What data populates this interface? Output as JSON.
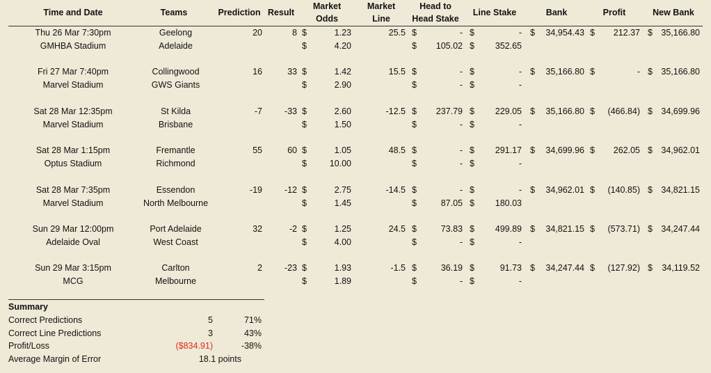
{
  "headers": {
    "time_date": "Time and Date",
    "teams": "Teams",
    "prediction": "Prediction",
    "result": "Result",
    "market_odds": [
      "Market",
      "Odds"
    ],
    "market_line": [
      "Market",
      "Line"
    ],
    "h2h_stake": [
      "Head to",
      "Head Stake"
    ],
    "line_stake": "Line Stake",
    "bank": "Bank",
    "profit": "Profit",
    "new_bank": "New Bank"
  },
  "currency": "$",
  "games": [
    {
      "time": "Thu 26 Mar 7:30pm",
      "venue": "GMHBA Stadium",
      "home": "Geelong",
      "away": "Adelaide",
      "prediction": "20",
      "result": "8",
      "odds_home": "1.23",
      "odds_away": "4.20",
      "line": "25.5",
      "h2h_home": "-",
      "h2h_away": "105.02",
      "ls_home": "-",
      "ls_away": "352.65",
      "bank": "34,954.43",
      "profit": "212.37",
      "new_bank": "35,166.80"
    },
    {
      "time": "Fri 27 Mar 7:40pm",
      "venue": "Marvel Stadium",
      "home": "Collingwood",
      "away": "GWS Giants",
      "prediction": "16",
      "result": "33",
      "odds_home": "1.42",
      "odds_away": "2.90",
      "line": "15.5",
      "h2h_home": "-",
      "h2h_away": "-",
      "ls_home": "-",
      "ls_away": "-",
      "bank": "35,166.80",
      "profit": "-",
      "new_bank": "35,166.80"
    },
    {
      "time": "Sat 28 Mar 12:35pm",
      "venue": "Marvel Stadium",
      "home": "St Kilda",
      "away": "Brisbane",
      "prediction": "-7",
      "result": "-33",
      "odds_home": "2.60",
      "odds_away": "1.50",
      "line": "-12.5",
      "h2h_home": "237.79",
      "h2h_away": "-",
      "ls_home": "229.05",
      "ls_away": "-",
      "bank": "35,166.80",
      "profit": "(466.84)",
      "new_bank": "34,699.96"
    },
    {
      "time": "Sat 28 Mar 1:15pm",
      "venue": "Optus Stadium",
      "home": "Fremantle",
      "away": "Richmond",
      "prediction": "55",
      "result": "60",
      "odds_home": "1.05",
      "odds_away": "10.00",
      "line": "48.5",
      "h2h_home": "-",
      "h2h_away": "-",
      "ls_home": "291.17",
      "ls_away": "-",
      "bank": "34,699.96",
      "profit": "262.05",
      "new_bank": "34,962.01"
    },
    {
      "time": "Sat 28 Mar 7:35pm",
      "venue": "Marvel Stadium",
      "home": "Essendon",
      "away": "North Melbourne",
      "prediction": "-19",
      "result": "-12",
      "odds_home": "2.75",
      "odds_away": "1.45",
      "line": "-14.5",
      "h2h_home": "-",
      "h2h_away": "87.05",
      "ls_home": "-",
      "ls_away": "180.03",
      "bank": "34,962.01",
      "profit": "(140.85)",
      "new_bank": "34,821.15"
    },
    {
      "time": "Sun 29 Mar 12:00pm",
      "venue": "Adelaide Oval",
      "home": "Port Adelaide",
      "away": "West Coast",
      "prediction": "32",
      "result": "-2",
      "odds_home": "1.25",
      "odds_away": "4.00",
      "line": "24.5",
      "h2h_home": "73.83",
      "h2h_away": "-",
      "ls_home": "499.89",
      "ls_away": "-",
      "bank": "34,821.15",
      "profit": "(573.71)",
      "new_bank": "34,247.44"
    },
    {
      "time": "Sun 29 Mar 3:15pm",
      "venue": "MCG",
      "home": "Carlton",
      "away": "Melbourne",
      "prediction": "2",
      "result": "-23",
      "odds_home": "1.93",
      "odds_away": "1.89",
      "line": "-1.5",
      "h2h_home": "36.19",
      "h2h_away": "-",
      "ls_home": "91.73",
      "ls_away": "-",
      "bank": "34,247.44",
      "profit": "(127.92)",
      "new_bank": "34,119.52"
    }
  ],
  "summary": {
    "title": "Summary",
    "rows": [
      {
        "label": "Correct Predictions",
        "value": "5",
        "pct": "71%"
      },
      {
        "label": "Correct Line Predictions",
        "value": "3",
        "pct": "43%"
      },
      {
        "label": "Profit/Loss",
        "value": "($834.91)",
        "pct": "-38%",
        "value_color": "#e02a1a"
      },
      {
        "label": "Average Margin of Error",
        "value": "18.1 points",
        "pct": ""
      }
    ]
  }
}
